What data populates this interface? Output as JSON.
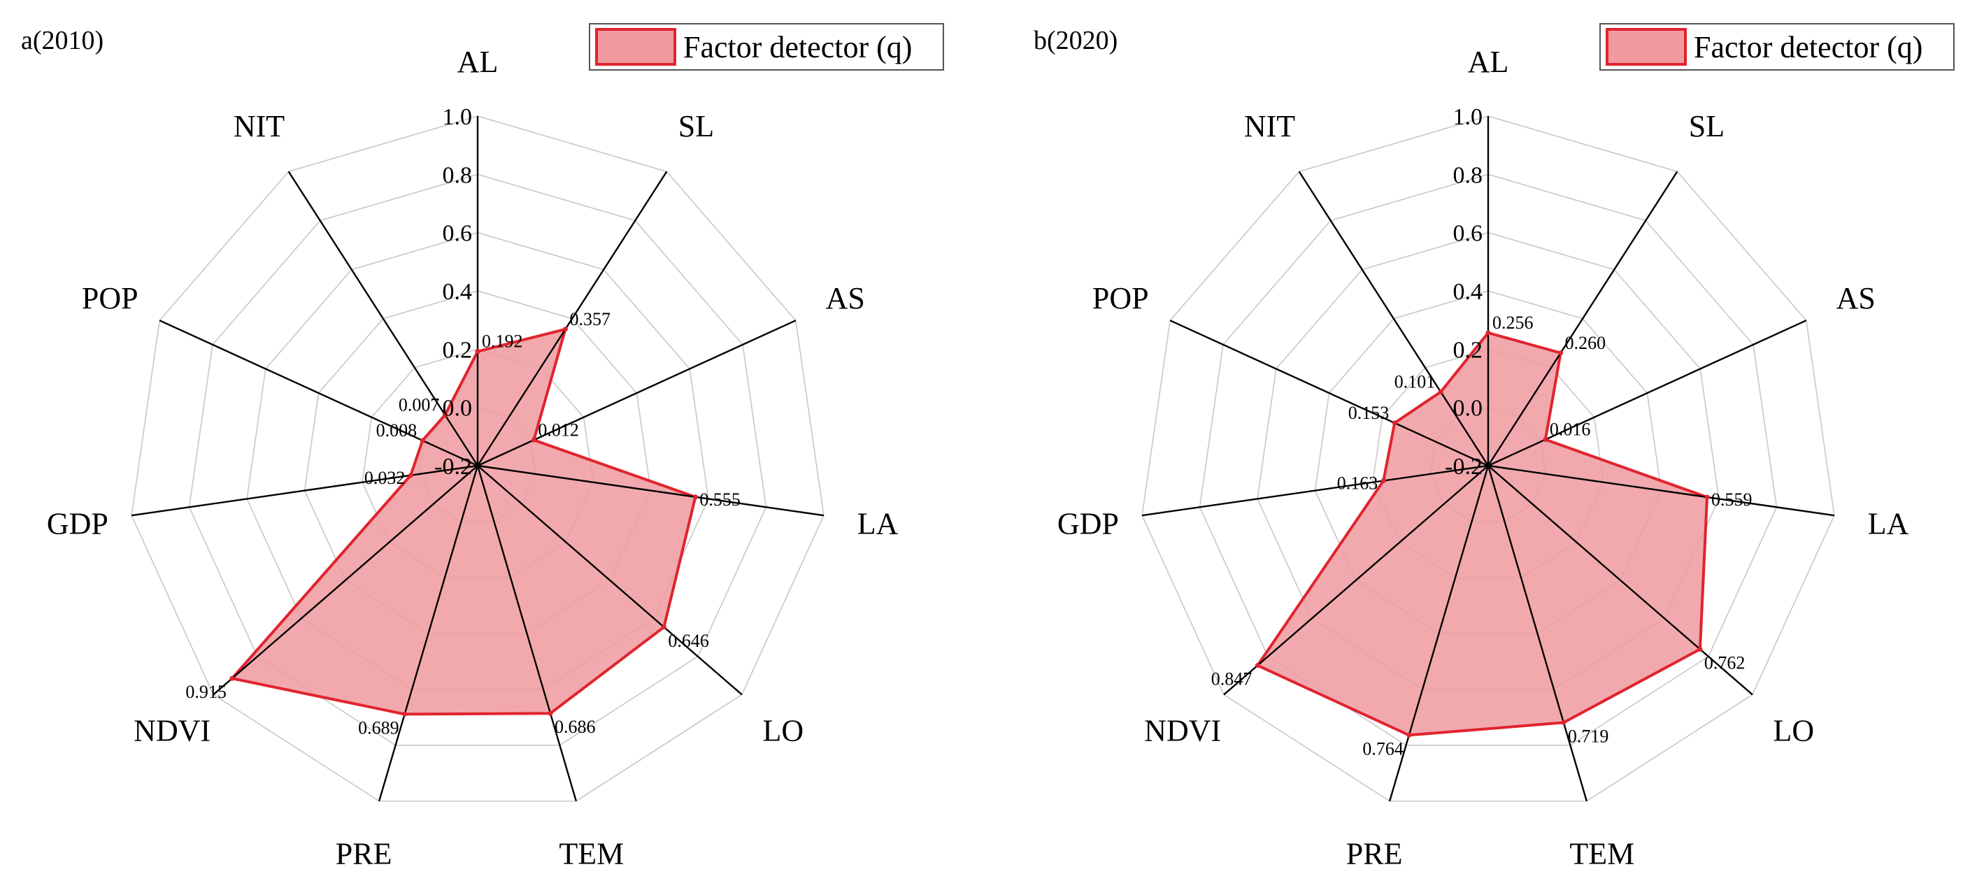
{
  "chart_data": [
    {
      "type": "radar",
      "title": "a(2010)",
      "legend": "Factor detector (q)",
      "axes": [
        "AL",
        "SL",
        "AS",
        "LA",
        "LO",
        "TEM",
        "PRE",
        "NDVI",
        "GDP",
        "POP",
        "NIT"
      ],
      "series": [
        {
          "name": "Factor detector (q)",
          "values": [
            0.192,
            0.357,
            0.012,
            0.555,
            0.646,
            0.686,
            0.689,
            0.915,
            0.032,
            0.008,
            0.007
          ]
        }
      ],
      "range": [
        -0.2,
        1.0
      ],
      "ticks": [
        "-0.2",
        "0.0",
        "0.2",
        "0.4",
        "0.6",
        "0.8",
        "1.0"
      ],
      "labels": [
        "0.192",
        "0.357",
        "0.012",
        "0.555",
        "0.646",
        "0.686",
        "0.689",
        "0.915",
        "0.032",
        "0.008",
        "0.007"
      ]
    },
    {
      "type": "radar",
      "title": "b(2020)",
      "legend": "Factor detector (q)",
      "axes": [
        "AL",
        "SL",
        "AS",
        "LA",
        "LO",
        "TEM",
        "PRE",
        "NDVI",
        "GDP",
        "POP",
        "NIT"
      ],
      "series": [
        {
          "name": "Factor detector (q)",
          "values": [
            0.256,
            0.26,
            0.016,
            0.559,
            0.762,
            0.719,
            0.764,
            0.847,
            0.163,
            0.153,
            0.101
          ]
        }
      ],
      "range": [
        -0.2,
        1.0
      ],
      "ticks": [
        "-0.2",
        "0.0",
        "0.2",
        "0.4",
        "0.6",
        "0.8",
        "1.0"
      ],
      "labels": [
        "0.256",
        "0.260",
        "0.016",
        "0.559",
        "0.762",
        "0.719",
        "0.764",
        "0.847",
        "0.163",
        "0.153",
        "0.101"
      ]
    }
  ],
  "colors": {
    "fill": "#f09aa0",
    "stroke": "#e0242e",
    "grid": "#c8c8c8",
    "axis": "#000000"
  }
}
